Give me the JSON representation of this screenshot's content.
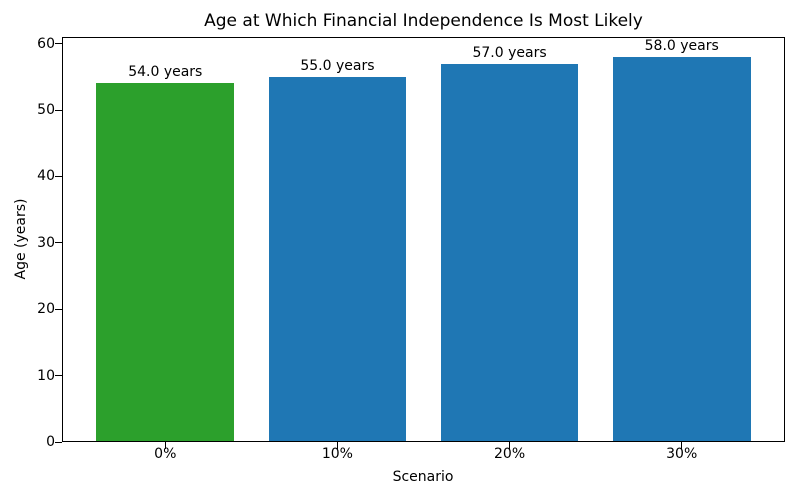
{
  "chart_data": {
    "type": "bar",
    "title": "Age at Which Financial Independence Is Most Likely",
    "xlabel": "Scenario",
    "ylabel": "Age (years)",
    "categories": [
      "0%",
      "10%",
      "20%",
      "30%"
    ],
    "values": [
      54.0,
      55.0,
      57.0,
      58.0
    ],
    "bar_labels": [
      "54.0 years",
      "55.0 years",
      "57.0 years",
      "58.0 years"
    ],
    "bar_colors": [
      "#2ca02c",
      "#1f77b4",
      "#1f77b4",
      "#1f77b4"
    ],
    "yticks": [
      0,
      10,
      20,
      30,
      40,
      50,
      60
    ],
    "ylim": [
      0,
      61
    ],
    "xlim": [
      -0.6,
      3.6
    ],
    "bar_width": 0.8,
    "grid": false,
    "legend_position": "none",
    "background_color": "#ffffff",
    "spine_color": "#000000"
  }
}
